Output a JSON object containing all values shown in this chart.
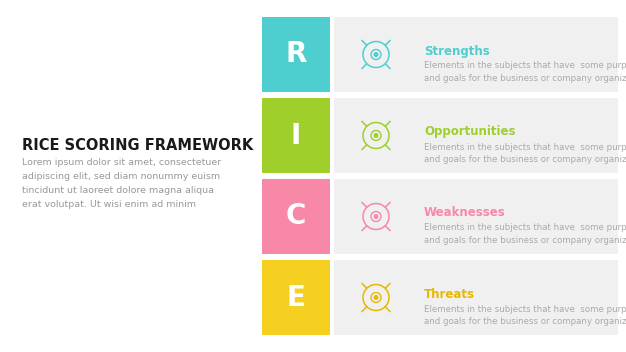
{
  "title": "RICE SCORING FRAMEWORK",
  "body_text": "Lorem ipsum dolor sit amet, consectetuer\nadipiscing elit, sed diam nonummy euism\ntincidunt ut laoreet dolore magna aliqua\nerat volutpat. Ut wisi enim ad minim",
  "items": [
    {
      "letter": "R",
      "label": "Strengths",
      "desc": "Elements in the subjects that have  some purposes\nand goals for the business or company organization",
      "box_color": "#4ecece",
      "text_color": "#4ecece"
    },
    {
      "letter": "I",
      "label": "Opportunities",
      "desc": "Elements in the subjects that have  some purposes\nand goals for the business or company organization",
      "box_color": "#9ecf2a",
      "text_color": "#9ecf2a"
    },
    {
      "letter": "C",
      "label": "Weaknesses",
      "desc": "Elements in the subjects that have  some purposes\nand goals for the business or company organization",
      "box_color": "#f888a8",
      "text_color": "#f888a8"
    },
    {
      "letter": "E",
      "label": "Threats",
      "desc": "Elements in the subjects that have  some purposes\nand goals for the business or company organization",
      "box_color": "#f5d020",
      "text_color": "#e8b800"
    }
  ],
  "bg_color": "#ffffff",
  "row_bg_color": "#f0f0f0",
  "title_fontsize": 10.5,
  "body_fontsize": 6.8,
  "label_fontsize": 8.5,
  "desc_fontsize": 6.2,
  "letter_fontsize": 20
}
